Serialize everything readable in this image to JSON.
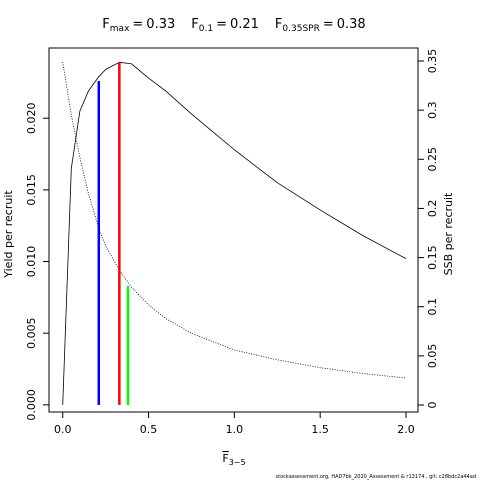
{
  "chart_data": {
    "type": "line",
    "title_items": [
      {
        "symbol": "F",
        "sub": "max",
        "eq": "=",
        "value": 0.33,
        "color": "#ff0000",
        "top": 0.0239,
        "axis": "y"
      },
      {
        "symbol": "F",
        "sub": "0.1",
        "eq": "=",
        "value": 0.21,
        "color": "#0000ff",
        "top": 0.0226,
        "axis": "y"
      },
      {
        "symbol": "F",
        "sub": "0.35SPR",
        "eq": "=",
        "value": 0.38,
        "color": "#00ff00",
        "top": 0.121,
        "axis": "y2"
      }
    ],
    "xlabel": {
      "symbol": "F",
      "sub": "3−5"
    },
    "ylabel": "Yield per recruit",
    "y2label": "SSB per recruit",
    "footnote": "stockassessment.org, HAD7bk_2020_Assessment & r13174 , git: c28bdc2a44ad",
    "x": [
      0,
      0.05,
      0.1,
      0.15,
      0.21,
      0.25,
      0.33,
      0.4,
      0.5,
      0.6,
      0.75,
      1.0,
      1.25,
      1.5,
      1.75,
      2.0
    ],
    "series": [
      {
        "name": "Yield per recruit",
        "color": "#000000",
        "style": "solid",
        "axis": "y",
        "values": [
          0,
          0.0165,
          0.0205,
          0.0219,
          0.0229,
          0.0234,
          0.0239,
          0.0238,
          0.0228,
          0.0219,
          0.0203,
          0.0178,
          0.0155,
          0.0136,
          0.0118,
          0.0102
        ]
      },
      {
        "name": "SSB per recruit",
        "color": "#000000",
        "style": "dotted",
        "axis": "y2",
        "values": [
          0.349,
          0.295,
          0.252,
          0.215,
          0.18,
          0.162,
          0.137,
          0.12,
          0.102,
          0.088,
          0.073,
          0.056,
          0.046,
          0.038,
          0.032,
          0.0275
        ]
      }
    ],
    "xlim": [
      -0.08,
      2.07
    ],
    "xticks": [
      {
        "value": 0,
        "label": "0.0"
      },
      0.5,
      {
        "value": 1,
        "label": "1.0"
      },
      1.5,
      {
        "value": 2,
        "label": "2.0"
      }
    ],
    "ylim": [
      -0.0005,
      0.0249
    ],
    "yticks": [
      {
        "value": 0,
        "label": "0.000"
      },
      {
        "value": 0.005,
        "label": "0.005"
      },
      {
        "value": 0.01,
        "label": "0.010"
      },
      {
        "value": 0.015,
        "label": "0.015"
      },
      {
        "value": 0.02,
        "label": "0.020"
      }
    ],
    "y2lim": [
      -0.0071,
      0.3632
    ],
    "y2ticks": [
      0,
      0.05,
      0.1,
      0.15,
      0.2,
      0.25,
      0.3,
      0.35
    ]
  }
}
